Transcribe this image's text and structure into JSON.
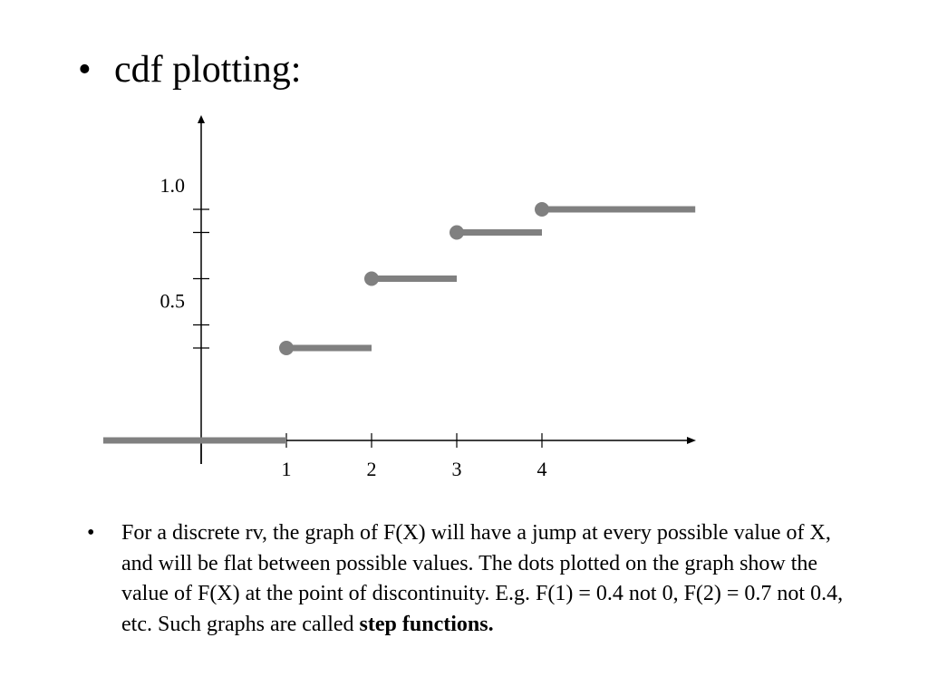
{
  "title": {
    "bullet": "•",
    "text": "cdf plotting:"
  },
  "chart_data": {
    "type": "line",
    "step": true,
    "x_ticks": [
      1,
      2,
      3,
      4
    ],
    "x_tick_labels": [
      "1",
      "2",
      "3",
      "4"
    ],
    "y_ticks": [
      0.4,
      0.5,
      0.7,
      0.9,
      1.0
    ],
    "y_tick_labels": [
      {
        "value": 0.5,
        "label": "0.5"
      },
      {
        "value": 1.0,
        "label": "1.0"
      }
    ],
    "xlim": [
      -1.15,
      4.8
    ],
    "ylim": [
      -0.1,
      1.4
    ],
    "grid": false,
    "segments": [
      {
        "x_start": -1.15,
        "x_end": 1,
        "y": 0,
        "dot": false
      },
      {
        "x_start": 1,
        "x_end": 2,
        "y": 0.4,
        "dot": true
      },
      {
        "x_start": 2,
        "x_end": 3,
        "y": 0.7,
        "dot": true
      },
      {
        "x_start": 3,
        "x_end": 4,
        "y": 0.9,
        "dot": true
      },
      {
        "x_start": 4,
        "x_end": 5.8,
        "y": 1.0,
        "dot": true
      }
    ],
    "series_color": "#808080",
    "axis_color": "#000000"
  },
  "body": {
    "bullet": "•",
    "text_before_bold": "For a discrete rv, the graph of F(X) will have a jump at every possible value of X, and will be flat between possible values. The dots plotted on the graph show the value of F(X) at the point of discontinuity. E.g. F(1) = 0.4 not 0, F(2) = 0.7 not 0.4, etc. Such graphs are called ",
    "bold_text": "step functions."
  }
}
